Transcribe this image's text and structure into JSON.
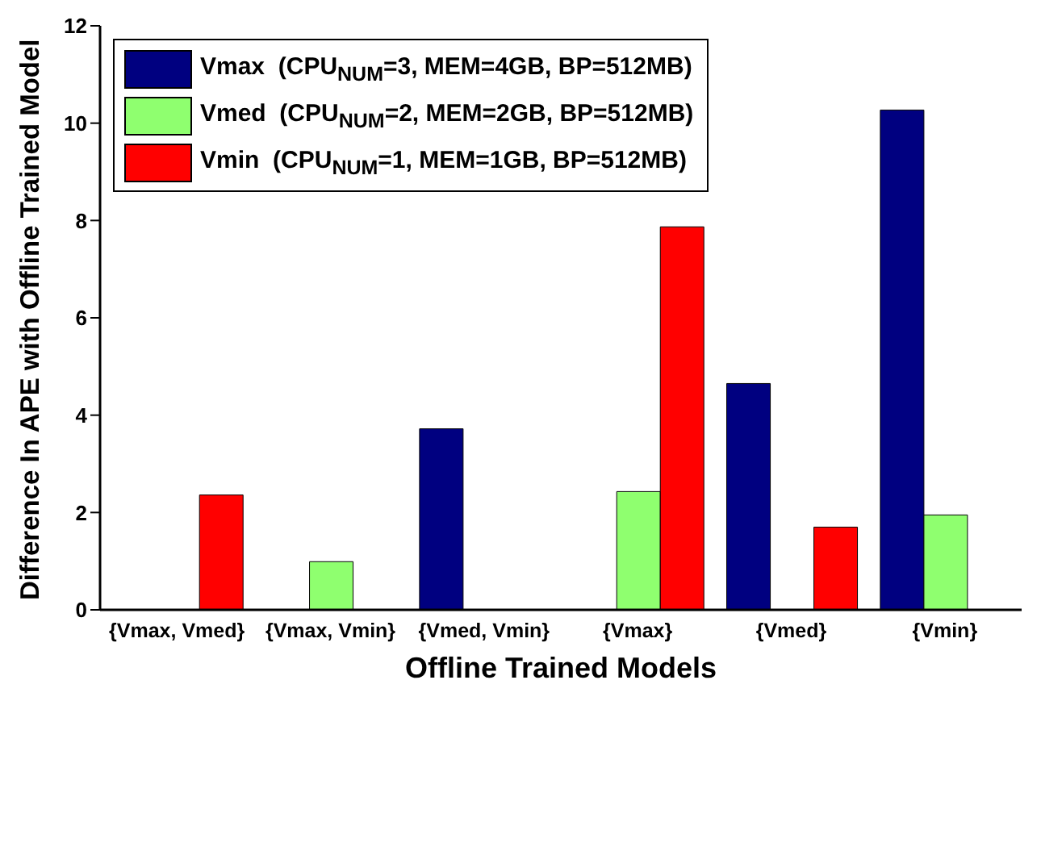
{
  "chart_data": {
    "type": "bar",
    "xlabel": "Offline Trained Models",
    "ylabel": "Difference In APE with Offline Trained Model",
    "categories": [
      "{Vmax, Vmed}",
      "{Vmax, Vmin}",
      "{Vmed, Vmin}",
      "{Vmax}",
      "{Vmed}",
      "{Vmin}"
    ],
    "series": [
      {
        "name": "Vmax  (CPU$_{NUM}$=3, MEM=4GB, BP=512MB)",
        "color": "#000080",
        "values": [
          0,
          0,
          3.72,
          0,
          4.65,
          10.27
        ]
      },
      {
        "name": "Vmed  (CPU$_{NUM}$=2, MEM=2GB, BP=512MB)",
        "color": "#8fff6f",
        "values": [
          0,
          0.99,
          0,
          2.43,
          0,
          1.95
        ]
      },
      {
        "name": "Vmin  (CPU$_{NUM}$=1, MEM=1GB, BP=512MB)",
        "color": "#ff0000",
        "values": [
          2.36,
          0,
          0,
          7.87,
          1.7,
          0
        ]
      }
    ],
    "ylim": [
      0,
      12
    ],
    "yticks": [
      0,
      2,
      4,
      6,
      8,
      10,
      12
    ],
    "grid": false,
    "legend": "top left"
  }
}
